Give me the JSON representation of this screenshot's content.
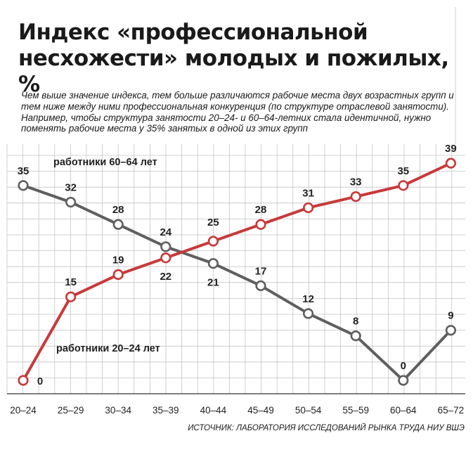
{
  "title": "Индекс «профессиональной несхожести» молодых и пожилых, %",
  "subtitle": "Чем выше значение индекса, тем больше различаются рабочие места двух возрастных групп и тем ниже между ними профессиональная конкуренция (по структуре отраслевой занятости). Например, чтобы структура занятости 20–24- и 60–64-летних стала идентичной, нужно поменять рабочие места у 35% занятых в одной из этих групп",
  "source": "ИСТОЧНИК: ЛАБОРАТОРИЯ ИССЛЕДОВАНИЙ РЫНКА ТРУДА НИУ ВШЭ",
  "chart_data": {
    "type": "line",
    "categories": [
      "20–24",
      "25–29",
      "30–34",
      "35–39",
      "40–44",
      "45–49",
      "50–54",
      "55–59",
      "60–64",
      "65–72"
    ],
    "ylim": [
      0,
      40
    ],
    "grid": true,
    "series": [
      {
        "name": "работники 60–64 лет",
        "color": "#5f5f60",
        "values": [
          35,
          32,
          28,
          24,
          21,
          17,
          12,
          8,
          0,
          9
        ]
      },
      {
        "name": "работники 20–24 лет",
        "color": "#c8393a",
        "values": [
          0,
          15,
          19,
          22,
          25,
          28,
          31,
          33,
          35,
          39
        ]
      }
    ]
  }
}
